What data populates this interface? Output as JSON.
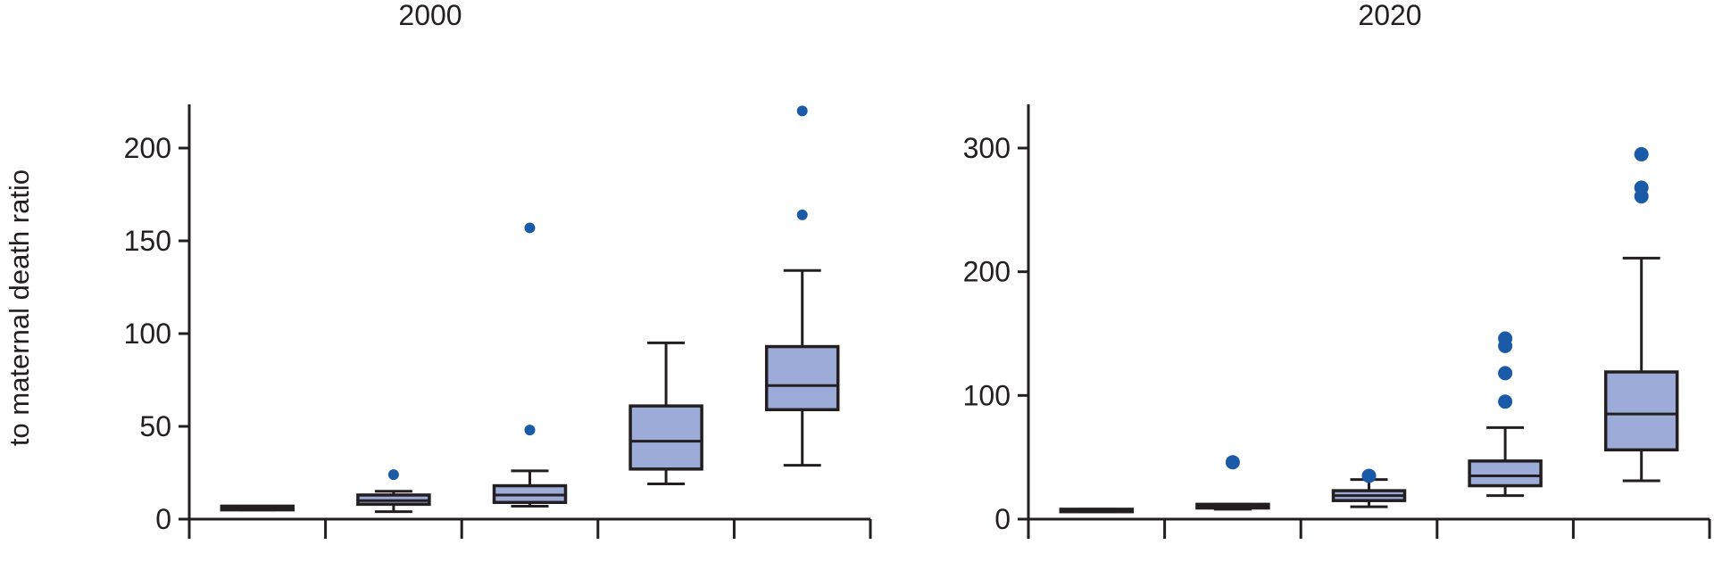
{
  "figure": {
    "ylabel": "to maternal death ratio"
  },
  "colors": {
    "box_fill": "#9dabd8",
    "box_stroke": "#231f20",
    "outlier": "#1a5aa6",
    "axis": "#231f20",
    "text": "#231f20"
  },
  "chart_data": [
    {
      "type": "box",
      "title": "2000",
      "xlabel": "",
      "ylabel": "to maternal death ratio",
      "ylim": [
        0,
        225
      ],
      "yticks": [
        0,
        50,
        100,
        150,
        200
      ],
      "grid": false,
      "categories_count": 5,
      "boxes": [
        {
          "whisker_low": 5,
          "q1": 5,
          "median": 6,
          "q3": 7,
          "whisker_high": 7,
          "outliers": []
        },
        {
          "whisker_low": 4,
          "q1": 8,
          "median": 10,
          "q3": 13,
          "whisker_high": 15,
          "outliers": [
            24
          ]
        },
        {
          "whisker_low": 7,
          "q1": 9,
          "median": 13,
          "q3": 18,
          "whisker_high": 26,
          "outliers": [
            48,
            157
          ]
        },
        {
          "whisker_low": 19,
          "q1": 27,
          "median": 42,
          "q3": 61,
          "whisker_high": 95,
          "outliers": []
        },
        {
          "whisker_low": 29,
          "q1": 59,
          "median": 72,
          "q3": 93,
          "whisker_high": 134,
          "outliers": [
            164,
            220
          ]
        }
      ]
    },
    {
      "type": "box",
      "title": "2020",
      "xlabel": "",
      "ylabel": "",
      "ylim": [
        0,
        335
      ],
      "yticks": [
        0,
        100,
        200,
        300
      ],
      "grid": false,
      "categories_count": 5,
      "boxes": [
        {
          "whisker_low": 6,
          "q1": 6,
          "median": 7,
          "q3": 8,
          "whisker_high": 8,
          "outliers": []
        },
        {
          "whisker_low": 8,
          "q1": 9,
          "median": 10,
          "q3": 12,
          "whisker_high": 12,
          "outliers": [
            46
          ]
        },
        {
          "whisker_low": 10,
          "q1": 15,
          "median": 19,
          "q3": 23,
          "whisker_high": 32,
          "outliers": [
            35
          ]
        },
        {
          "whisker_low": 19,
          "q1": 27,
          "median": 35,
          "q3": 47,
          "whisker_high": 74,
          "outliers": [
            95,
            118,
            140,
            146
          ]
        },
        {
          "whisker_low": 31,
          "q1": 56,
          "median": 85,
          "q3": 119,
          "whisker_high": 211,
          "outliers": [
            261,
            268,
            295
          ]
        }
      ]
    }
  ]
}
